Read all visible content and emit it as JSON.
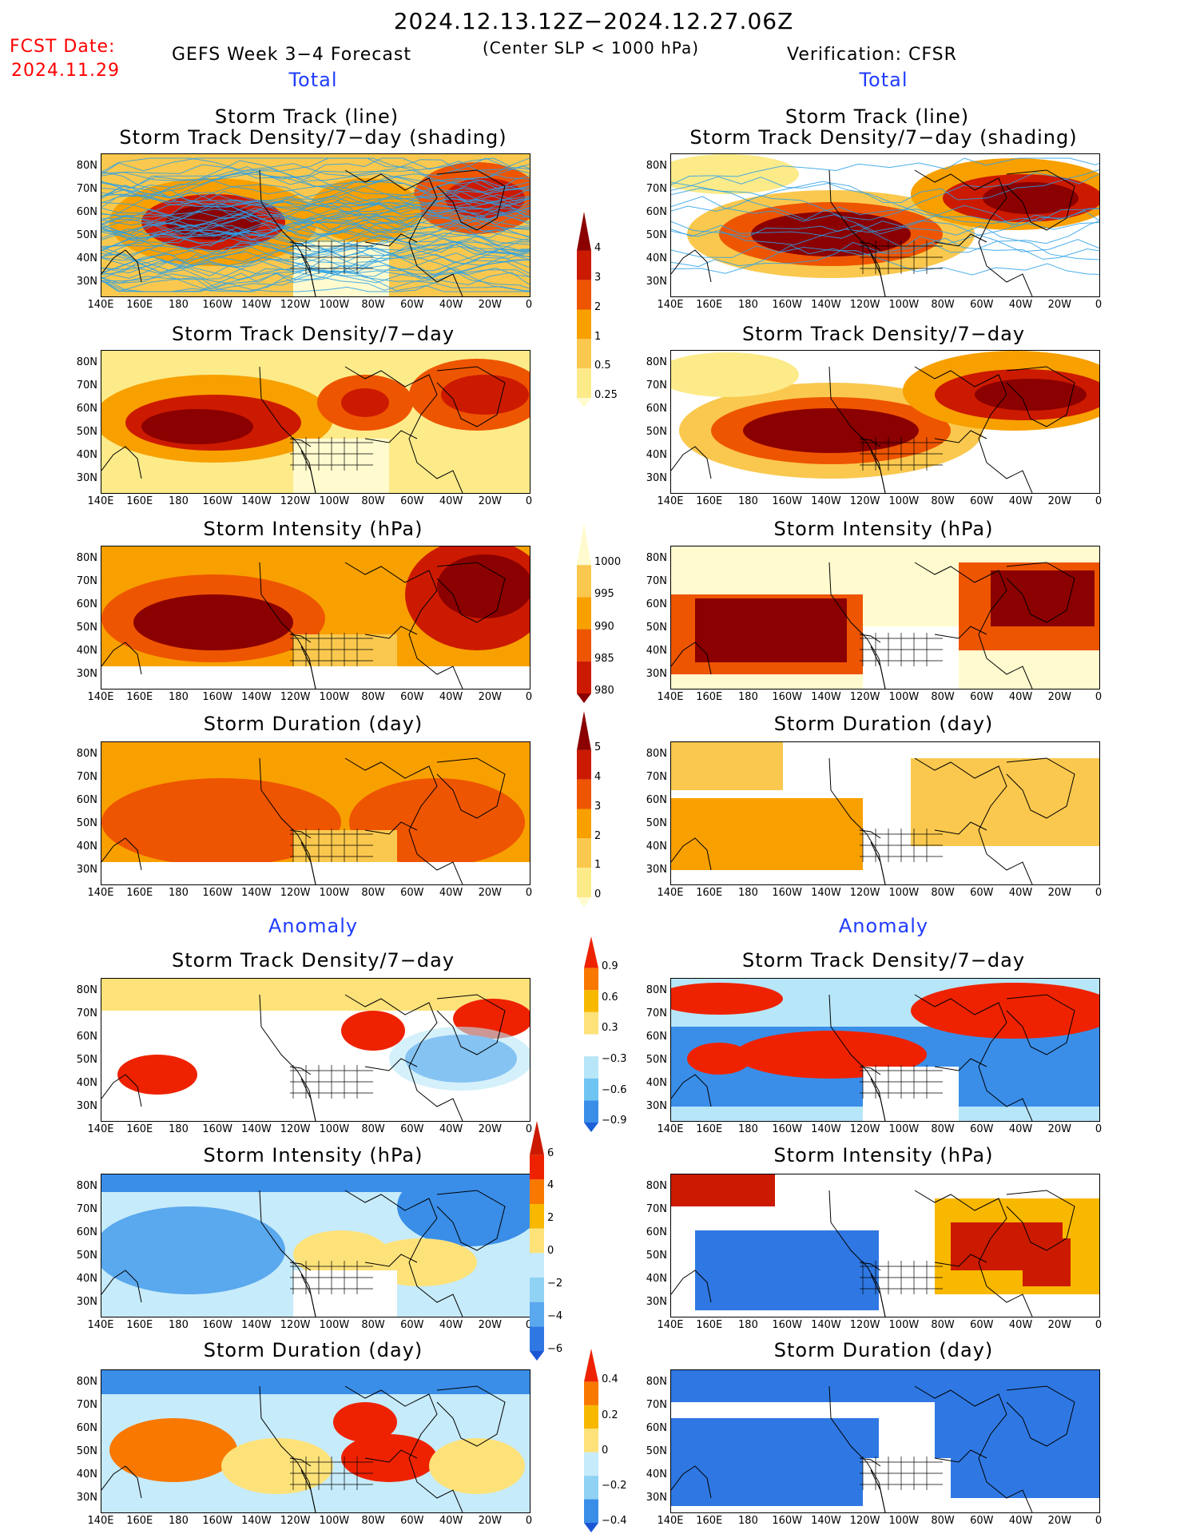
{
  "header": {
    "date_range": "2024.12.13.12Z−2024.12.27.06Z",
    "fcst_label": "FCST Date:",
    "fcst_date": "2024.11.29",
    "left_title": "GEFS Week 3−4 Forecast",
    "criterion": "(Center SLP < 1000 hPa)",
    "right_title": "Verification: CFSR"
  },
  "sections": {
    "total": "Total",
    "anomaly": "Anomaly"
  },
  "panel_titles": {
    "track_line": "Storm Track (line)",
    "track_shading": "Storm Track Density/7−day (shading)",
    "density": "Storm Track Density/7−day",
    "intensity": "Storm Intensity (hPa)",
    "duration": "Storm Duration (day)"
  },
  "axes": {
    "lat_ticks": [
      "80N",
      "70N",
      "60N",
      "50N",
      "40N",
      "30N"
    ],
    "lon_ticks": [
      "140E",
      "160E",
      "180",
      "160W",
      "140W",
      "120W",
      "100W",
      "80W",
      "60W",
      "40W",
      "20W",
      "0"
    ]
  },
  "colorbars": {
    "density": {
      "labels": [
        "4",
        "3",
        "2",
        "1",
        "0.5",
        "0.25"
      ],
      "colors": [
        "#8b0000",
        "#cc1a00",
        "#ee5500",
        "#f8a000",
        "#fac84e",
        "#fdeb8a",
        "#fffbcf"
      ]
    },
    "intensity": {
      "labels": [
        "1000",
        "995",
        "990",
        "985",
        "980"
      ],
      "colors": [
        "#fffbcf",
        "#fac84e",
        "#f8a000",
        "#ee5500",
        "#cc1a00",
        "#8b0000"
      ]
    },
    "duration": {
      "labels": [
        "5",
        "4",
        "3",
        "2",
        "1",
        "0"
      ],
      "colors": [
        "#8b0000",
        "#cc1a00",
        "#ee5500",
        "#f8a000",
        "#fac84e",
        "#fdeb8a",
        "#fffbcf"
      ]
    },
    "density_anom": {
      "labels": [
        "0.9",
        "0.6",
        "0.3",
        "−0.3",
        "−0.6",
        "−0.9"
      ],
      "colors": [
        "#ee2200",
        "#f87800",
        "#f8b800",
        "#fde27a",
        "#ffffff",
        "#b7e6f8",
        "#6fc5f2",
        "#3a8ee8",
        "#1a5fd8"
      ]
    },
    "intensity_anom": {
      "labels": [
        "6",
        "4",
        "2",
        "0",
        "−2",
        "−4",
        "−6"
      ],
      "colors": [
        "#cc1a00",
        "#ee2200",
        "#f87800",
        "#f8b800",
        "#fde27a",
        "#c6ebfa",
        "#8fd2f4",
        "#5aa8ee",
        "#2f78e3",
        "#1a55d4"
      ]
    },
    "duration_anom": {
      "labels": [
        "0.4",
        "0.2",
        "0",
        "−0.2",
        "−0.4"
      ],
      "colors": [
        "#ee2200",
        "#f87800",
        "#f8b800",
        "#fde27a",
        "#c6ebfa",
        "#8fd2f4",
        "#3a8ee8",
        "#1a55d4"
      ]
    }
  }
}
